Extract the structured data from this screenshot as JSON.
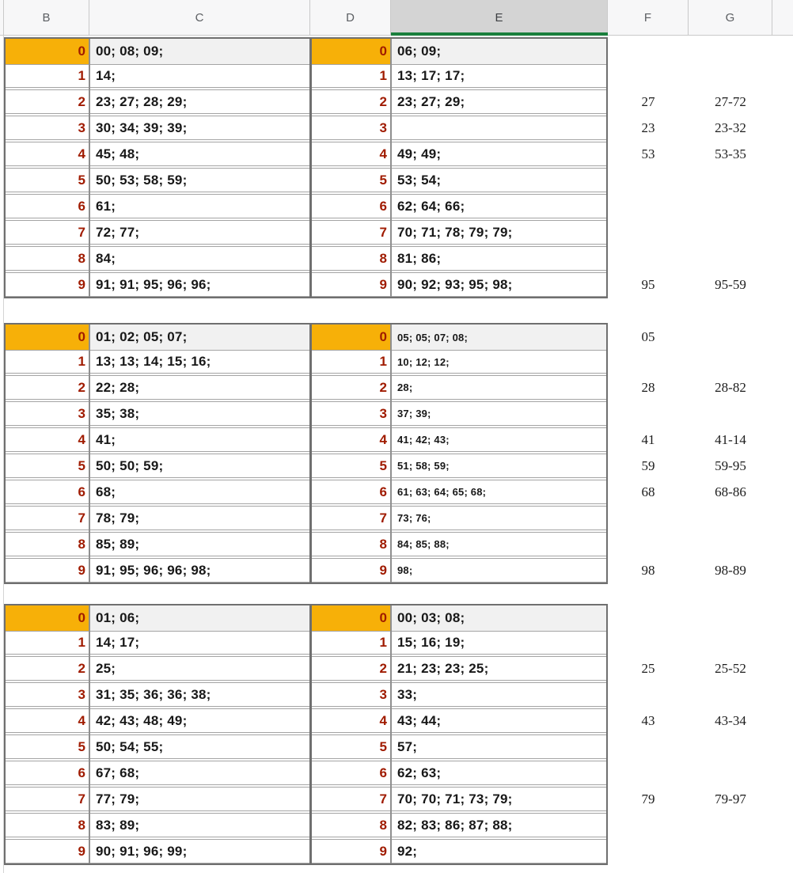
{
  "header": {
    "columns": [
      "B",
      "C",
      "D",
      "E",
      "F",
      "G"
    ],
    "selected_column": "E"
  },
  "colors": {
    "stem_highlight_orange": "#f7b008",
    "stem_digit_red": "#a01b00",
    "row0_background_gray": "#f1f1f1",
    "selected_header_green": "#1a7f3c",
    "selected_header_gray": "#d4d4d4",
    "table_border_gray": "#6f6f6f"
  },
  "blocks": [
    {
      "rows": [
        {
          "stem": "0",
          "left": "00; 08; 09;",
          "right": "06; 09;",
          "f": "",
          "g": ""
        },
        {
          "stem": "1",
          "left": "14;",
          "right": "13; 17; 17;",
          "f": "",
          "g": ""
        },
        {
          "stem": "2",
          "left": "23; 27; 28; 29;",
          "right": "23; 27; 29;",
          "f": "27",
          "g": "27-72"
        },
        {
          "stem": "3",
          "left": "30; 34; 39; 39;",
          "right": "",
          "f": "23",
          "g": "23-32"
        },
        {
          "stem": "4",
          "left": "45; 48;",
          "right": "49; 49;",
          "f": "53",
          "g": "53-35"
        },
        {
          "stem": "5",
          "left": "50; 53; 58; 59;",
          "right": "53; 54;",
          "f": "",
          "g": ""
        },
        {
          "stem": "6",
          "left": "61;",
          "right": "62; 64; 66;",
          "f": "",
          "g": ""
        },
        {
          "stem": "7",
          "left": "72; 77;",
          "right": "70; 71; 78; 79; 79;",
          "f": "",
          "g": ""
        },
        {
          "stem": "8",
          "left": "84;",
          "right": "81; 86;",
          "f": "",
          "g": ""
        },
        {
          "stem": "9",
          "left": "91; 91; 95; 96; 96;",
          "right": "90; 92; 93; 95; 98;",
          "f": "95",
          "g": "95-59"
        }
      ],
      "right_leaf_small_font": false
    },
    {
      "rows": [
        {
          "stem": "0",
          "left": "01; 02; 05; 07;",
          "right": "05; 05; 07; 08;",
          "f": "05",
          "g": ""
        },
        {
          "stem": "1",
          "left": "13; 13; 14; 15; 16;",
          "right": "10; 12; 12;",
          "f": "",
          "g": ""
        },
        {
          "stem": "2",
          "left": "22; 28;",
          "right": "28;",
          "f": "28",
          "g": "28-82"
        },
        {
          "stem": "3",
          "left": "35; 38;",
          "right": "37; 39;",
          "f": "",
          "g": ""
        },
        {
          "stem": "4",
          "left": "41;",
          "right": "41; 42; 43;",
          "f": "41",
          "g": "41-14"
        },
        {
          "stem": "5",
          "left": "50; 50; 59;",
          "right": "51; 58; 59;",
          "f": "59",
          "g": "59-95"
        },
        {
          "stem": "6",
          "left": "68;",
          "right": "61; 63; 64; 65; 68;",
          "f": "68",
          "g": "68-86"
        },
        {
          "stem": "7",
          "left": "78; 79;",
          "right": "73; 76;",
          "f": "",
          "g": ""
        },
        {
          "stem": "8",
          "left": "85; 89;",
          "right": "84; 85; 88;",
          "f": "",
          "g": ""
        },
        {
          "stem": "9",
          "left": "91; 95; 96; 96; 98;",
          "right": "98;",
          "f": "98",
          "g": "98-89"
        }
      ],
      "right_leaf_small_font": true
    },
    {
      "rows": [
        {
          "stem": "0",
          "left": "01; 06;",
          "right": "00; 03; 08;",
          "f": "",
          "g": ""
        },
        {
          "stem": "1",
          "left": "14; 17;",
          "right": "15; 16; 19;",
          "f": "",
          "g": ""
        },
        {
          "stem": "2",
          "left": "25;",
          "right": "21; 23; 23; 25;",
          "f": "25",
          "g": "25-52"
        },
        {
          "stem": "3",
          "left": "31; 35; 36; 36; 38;",
          "right": "33;",
          "f": "",
          "g": ""
        },
        {
          "stem": "4",
          "left": "42; 43; 48; 49;",
          "right": "43; 44;",
          "f": "43",
          "g": "43-34"
        },
        {
          "stem": "5",
          "left": "50; 54; 55;",
          "right": "57;",
          "f": "",
          "g": ""
        },
        {
          "stem": "6",
          "left": "67; 68;",
          "right": "62; 63;",
          "f": "",
          "g": ""
        },
        {
          "stem": "7",
          "left": "77; 79;",
          "right": "70; 70; 71; 73; 79;",
          "f": "79",
          "g": "79-97"
        },
        {
          "stem": "8",
          "left": "83; 89;",
          "right": "82; 83; 86; 87; 88;",
          "f": "",
          "g": ""
        },
        {
          "stem": "9",
          "left": "90; 91; 96; 99;",
          "right": "92;",
          "f": "",
          "g": ""
        }
      ],
      "right_leaf_small_font": false
    }
  ]
}
